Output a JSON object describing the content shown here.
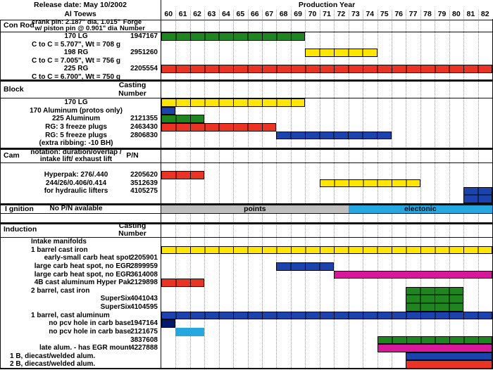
{
  "header": {
    "release_date": "Release date: May 10/2002",
    "author": "Al Toews",
    "production_year_label": "Production Year"
  },
  "colors": {
    "green": "#1F851F",
    "yellow": "#FFE600",
    "red": "#EB3323",
    "blue": "#1A43AE",
    "navy": "#00186E",
    "cyan": "#25A8E0",
    "magenta": "#D8189B",
    "gray": "#BEBEBE",
    "grid": "#999999"
  },
  "chart_data": {
    "type": "gantt",
    "x_axis": {
      "label": "Production Year",
      "years": [
        "60",
        "61",
        "62",
        "63",
        "64",
        "65",
        "66",
        "67",
        "68",
        "69",
        "70",
        "71",
        "72",
        "73",
        "74",
        "75",
        "76",
        "77",
        "78",
        "79",
        "80",
        "81",
        "82"
      ]
    },
    "sections": [
      {
        "name": "Con Rod",
        "desc_header": [
          "crank pin: 2.187\" dia, 1.015\"",
          "w/ piston pin @ 0.901\" dia"
        ],
        "number_header": [
          "Forge",
          "Number"
        ],
        "rows": [
          {
            "label": "170 LG",
            "number": "1947167",
            "align": "center",
            "bars": [
              {
                "from": 60,
                "to": 69,
                "color": "green",
                "cells": true
              }
            ]
          },
          {
            "label": "C to C = 5.707\", Wt = 708 g",
            "align": "center"
          },
          {
            "label": "198 RG",
            "number": "2951260",
            "align": "center",
            "bars": [
              {
                "from": 70,
                "to": 74,
                "color": "yellow",
                "cells": true
              }
            ]
          },
          {
            "label": "C to C = 7.005\", Wt = 756 g",
            "align": "center"
          },
          {
            "label": "225 RG",
            "number": "2205554",
            "align": "center",
            "bars": [
              {
                "from": 60,
                "to": 82,
                "color": "red",
                "cells": true
              }
            ]
          },
          {
            "label": "C to C = 6.700\", Wt = 750 g",
            "align": "center"
          }
        ]
      },
      {
        "name": "Block",
        "desc_header": [],
        "number_header": [
          "Casting",
          "Number"
        ],
        "rows": [
          {
            "label": "170 LG",
            "align": "center",
            "bars": [
              {
                "from": 60,
                "to": 69,
                "color": "yellow",
                "cells": true
              }
            ]
          },
          {
            "label": "170 Aluminum (protos only)",
            "align": "center",
            "bars": [
              {
                "from": 60,
                "to": 60,
                "color": "blue",
                "cells": true
              }
            ]
          },
          {
            "label": "225 Aluminum",
            "number": "2121355",
            "align": "center",
            "bars": [
              {
                "from": 60,
                "to": 62,
                "color": "green",
                "cells": true
              }
            ]
          },
          {
            "label": "RG: 3 freeze plugs",
            "number": "2463430",
            "align": "center",
            "bars": [
              {
                "from": 60,
                "to": 67,
                "color": "red",
                "cells": true
              }
            ]
          },
          {
            "label": "RG: 5 freeze plugs",
            "number": "2806830",
            "align": "center",
            "bars": [
              {
                "from": 68,
                "to": 75,
                "color": "blue",
                "cells": true
              }
            ]
          },
          {
            "label": "(extra ribbing: -10 BH)",
            "align": "center"
          }
        ]
      },
      {
        "name": "Cam",
        "desc_header": [
          "notation: duration/overlap /",
          "intake lift/ exhaust lift"
        ],
        "number_header": [
          "P/N"
        ],
        "rows": [
          {
            "label": "",
            "align": "center"
          },
          {
            "label": "Hyperpak: 276/.440",
            "number": "2205620",
            "align": "center",
            "bars": [
              {
                "from": 60,
                "to": 62,
                "color": "red",
                "cells": true
              }
            ]
          },
          {
            "label": "244/26/0.406/0.414",
            "number": "3512639",
            "align": "center",
            "bars": [
              {
                "from": 71,
                "to": 77,
                "color": "yellow",
                "cells": true
              }
            ]
          },
          {
            "label": "for hydraulic lifters",
            "number": "4105275",
            "align": "center",
            "bars": [
              {
                "from": 81,
                "to": 82,
                "color": "blue",
                "cells": true,
                "rows": 2
              }
            ]
          },
          {
            "label": "",
            "align": "center"
          }
        ]
      },
      {
        "name": "I gnition",
        "name_in_row": true,
        "desc_header": [],
        "number_header": [],
        "rows": [
          {
            "label": "No P/N avalable",
            "align": "center",
            "bars": [
              {
                "from": 60,
                "to": 72,
                "color": "gray",
                "label": "points",
                "border": false
              },
              {
                "from": 73,
                "to": 82,
                "color": "cyan",
                "label": "electonic",
                "border": false
              }
            ]
          }
        ]
      },
      {
        "name": "Induction",
        "desc_header": [],
        "number_header": [
          "Casting",
          "Number"
        ],
        "rows": [
          {
            "label": "Intake manifolds",
            "align": "left1"
          },
          {
            "label": "1 barrel cast iron",
            "align": "left1",
            "bars": [
              {
                "from": 60,
                "to": 82,
                "color": "yellow",
                "cells": true
              }
            ]
          },
          {
            "label": "early-small carb heat spot",
            "number": "2205901",
            "align": "right"
          },
          {
            "label": "large carb heat spot, no EGR",
            "number": "2899959",
            "align": "right",
            "bars": [
              {
                "from": 68,
                "to": 71,
                "color": "blue",
                "cells": true
              }
            ]
          },
          {
            "label": "large carb heat spot, no EGR",
            "number": "3614008",
            "align": "right",
            "bars": [
              {
                "from": 72,
                "to": 82,
                "color": "magenta"
              }
            ]
          },
          {
            "label": "4B cast aluminum Hyper Pak",
            "number": "2129898",
            "align": "right",
            "bars": [
              {
                "from": 60,
                "to": 62,
                "color": "red",
                "cells": true
              }
            ]
          },
          {
            "label": "2 barrel, cast iron",
            "align": "left1",
            "bars": [
              {
                "from": 77,
                "to": 80,
                "color": "green",
                "cells": true,
                "rows": 3
              }
            ]
          },
          {
            "label": "SuperSix",
            "number": "4041043",
            "align": "right"
          },
          {
            "label": "SuperSix",
            "number": "4104595",
            "align": "right"
          },
          {
            "label": "1 barrel, cast aluminum",
            "align": "left1",
            "bars": [
              {
                "from": 60,
                "to": 82,
                "color": "blue",
                "cells": true
              }
            ]
          },
          {
            "label": "no pcv hole in carb base",
            "number": "1947164",
            "align": "right",
            "bars": [
              {
                "from": 60,
                "to": 60,
                "color": "navy"
              }
            ]
          },
          {
            "label": "no pcv hole in carb base",
            "number": "2121675",
            "align": "right",
            "bars": [
              {
                "from": 61,
                "to": 62,
                "color": "cyan",
                "border": false
              }
            ]
          },
          {
            "label": "",
            "number": "3837608",
            "align": "right",
            "bars": [
              {
                "from": 75,
                "to": 82,
                "color": "green",
                "cells": true
              }
            ]
          },
          {
            "label": "late alum. - has EGR mount",
            "number": "4227888",
            "align": "right",
            "bars": [
              {
                "from": 75,
                "to": 82,
                "color": "magenta"
              }
            ]
          },
          {
            "label": "1 B, diecast/welded alum.",
            "align": "left2",
            "bars": [
              {
                "from": 77,
                "to": 82,
                "color": "blue"
              }
            ]
          },
          {
            "label": "2 B, diecast/welded alum.",
            "align": "left2",
            "bars": [
              {
                "from": 77,
                "to": 82,
                "color": "red"
              }
            ]
          }
        ]
      }
    ]
  }
}
